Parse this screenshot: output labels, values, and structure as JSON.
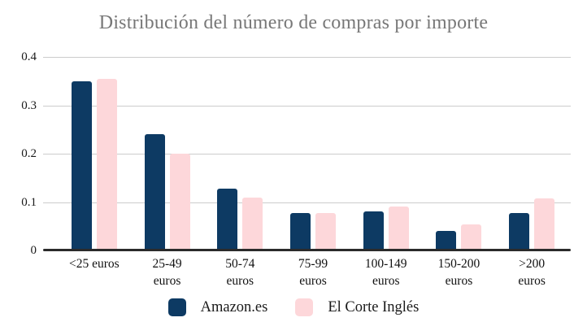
{
  "chart_data": {
    "type": "bar",
    "title": "Distribución del número de compras por importe",
    "categories": [
      "<25 euros",
      "25-49 euros",
      "50-74 euros",
      "75-99 euros",
      "100-149 euros",
      "150-200 euros",
      ">200 euros"
    ],
    "category_label_lines": [
      [
        "<25 euros"
      ],
      [
        "25-49",
        "euros"
      ],
      [
        "50-74",
        "euros"
      ],
      [
        "75-99",
        "euros"
      ],
      [
        "100-149",
        "euros"
      ],
      [
        "150-200",
        "euros"
      ],
      [
        ">200",
        "euros"
      ]
    ],
    "series": [
      {
        "name": "Amazon.es",
        "color": "#0d3a63",
        "values": [
          0.35,
          0.24,
          0.128,
          0.077,
          0.08,
          0.04,
          0.077
        ]
      },
      {
        "name": "El Corte Inglés",
        "color": "#fdd7da",
        "values": [
          0.355,
          0.2,
          0.11,
          0.077,
          0.091,
          0.054,
          0.108
        ]
      }
    ],
    "ylim": [
      0,
      0.4
    ],
    "yticks": [
      0,
      0.1,
      0.2,
      0.3,
      0.4
    ],
    "ytick_labels": [
      "0",
      "0.1",
      "0.2",
      "0.3",
      "0.4"
    ],
    "grid": true,
    "legend_position": "bottom"
  },
  "colors": {
    "background": "#ffffff",
    "title_text": "#777777",
    "gridline": "#cccccc",
    "axis_line": "#2b2b2b",
    "tick_text": "#1a1a1a"
  }
}
